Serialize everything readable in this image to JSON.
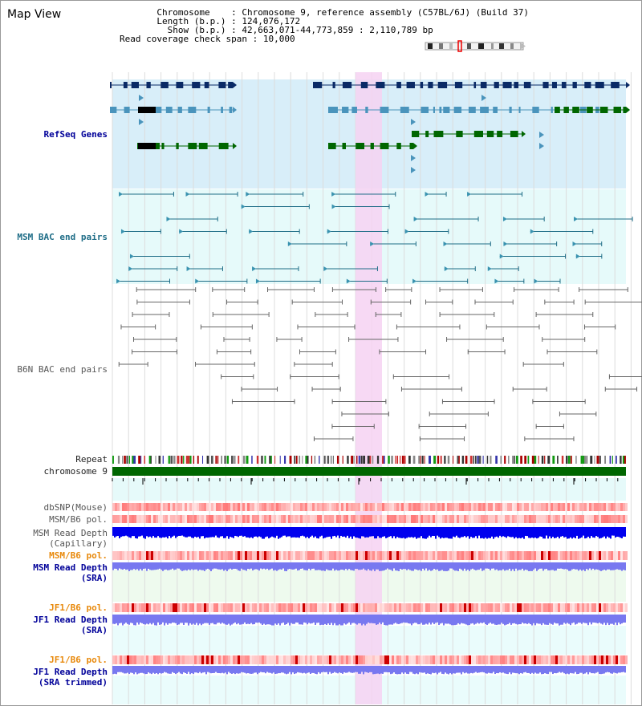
{
  "window": {
    "title": "Map View"
  },
  "info": {
    "chromosome_key": "Chromosome",
    "chromosome_value": "Chromosome 9, reference assembly (C57BL/6J) (Build 37)",
    "length_key": "Length (b.p.)",
    "length_value": "124,076,172",
    "show_key": "Show (b.p.)",
    "show_value": "42,663,071-44,773,859 : 2,110,789 bp",
    "coverage_key": "Read coverage check span",
    "coverage_value": "10,000"
  },
  "tracks": {
    "refseq": "RefSeq Genes",
    "msm_bac": "MSM BAC end pairs",
    "b6n_bac": "B6N BAC end pairs",
    "repeat": "Repeat",
    "chromosome": "chromosome 9",
    "dbsnp": "dbSNP(Mouse)",
    "msm_b6_pol": "MSM/B6 pol.",
    "msm_depth_cap_1": "MSM Read Depth",
    "msm_depth_cap_2": "(Capillary)",
    "msm_b6_pol_sra": "MSM/B6 pol.",
    "msm_depth_sra_1": "MSM Read Depth",
    "msm_depth_sra_2": "(SRA)",
    "jf1_b6_pol": "JF1/B6 pol.",
    "jf1_depth_sra_1": "JF1 Read Depth",
    "jf1_depth_sra_2": "(SRA)",
    "jf1_b6_pol_trim": "JF1/B6 pol.",
    "jf1_depth_trim_1": "JF1 Read Depth",
    "jf1_depth_trim_2": "(SRA trimmed)"
  },
  "ruler": {
    "ticks": [
      "42800000",
      "43200000",
      "43600000",
      "44000000",
      "44400000"
    ]
  },
  "colors": {
    "navy": "#0a2a66",
    "gene_blue": "#4a94bc",
    "gene_green": "#006600",
    "refseq_bg": "#d8eef9",
    "bac_bg": "#e6fafa",
    "highlight": "#f6d2f2",
    "chromosome_bar": "#006600",
    "depth_blue": "#0000ee",
    "depth_light": "#7878f0"
  }
}
